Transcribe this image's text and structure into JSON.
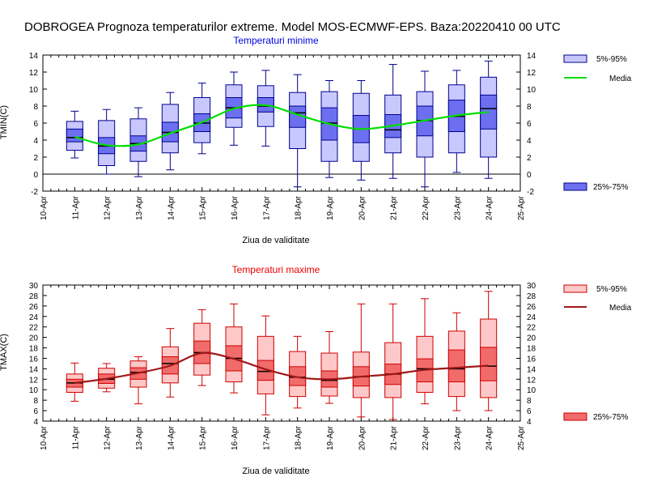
{
  "title": "DOBROGEA  Prognoza temperaturilor extreme.  Model MOS-ECMWF-EPS. Baza:20220410 00 UTC",
  "colors": {
    "min_box": "#6c70f0",
    "min_whisker": "#c8c8ff",
    "min_edge": "#00008b",
    "min_mean": "#00dd00",
    "max_box": "#f26b6b",
    "max_whisker": "#ffc8c8",
    "max_edge": "#cc0000",
    "max_mean": "#a01818"
  },
  "chart_data": [
    {
      "type": "boxplot",
      "title": "Temperaturi minime",
      "xlabel": "Ziua de validitate",
      "ylabel": "TMIN(C)",
      "ylim": [
        -2,
        14
      ],
      "yticks": [
        -2,
        0,
        2,
        4,
        6,
        8,
        10,
        12,
        14
      ],
      "x_ticks": [
        "10-Apr",
        "11-Apr",
        "12-Apr",
        "13-Apr",
        "14-Apr",
        "15-Apr",
        "16-Apr",
        "17-Apr",
        "18-Apr",
        "19-Apr",
        "20-Apr",
        "21-Apr",
        "22-Apr",
        "23-Apr",
        "24-Apr",
        "25-Apr"
      ],
      "categories": [
        "11-Apr",
        "12-Apr",
        "13-Apr",
        "14-Apr",
        "15-Apr",
        "16-Apr",
        "17-Apr",
        "18-Apr",
        "19-Apr",
        "20-Apr",
        "21-Apr",
        "22-Apr",
        "23-Apr",
        "24-Apr"
      ],
      "p5": [
        2.8,
        1.0,
        1.5,
        2.5,
        3.7,
        5.5,
        5.6,
        3.0,
        1.5,
        1.5,
        2.5,
        2.0,
        2.5,
        2.0
      ],
      "p25": [
        3.8,
        2.4,
        2.7,
        3.8,
        5.0,
        6.6,
        7.3,
        5.5,
        4.0,
        3.7,
        4.3,
        4.5,
        5.0,
        5.3
      ],
      "median": [
        4.3,
        3.3,
        3.6,
        4.9,
        6.0,
        7.8,
        8.0,
        7.2,
        6.0,
        5.3,
        5.2,
        6.3,
        6.8,
        7.7
      ],
      "p75": [
        5.3,
        4.3,
        4.5,
        6.1,
        7.1,
        9.0,
        9.0,
        8.0,
        7.8,
        6.9,
        7.0,
        8.0,
        8.7,
        9.3
      ],
      "p95": [
        6.2,
        6.3,
        6.5,
        8.2,
        9.0,
        10.5,
        10.4,
        9.6,
        9.7,
        9.5,
        9.3,
        9.7,
        10.5,
        11.4
      ],
      "min": [
        1.9,
        0.0,
        -0.3,
        0.5,
        2.4,
        3.4,
        3.3,
        -1.5,
        -0.4,
        -0.7,
        -0.5,
        -1.5,
        0.2,
        -0.5
      ],
      "max": [
        7.4,
        7.6,
        7.8,
        9.6,
        10.7,
        12.0,
        12.2,
        11.7,
        11.0,
        11.0,
        12.9,
        12.1,
        12.2,
        13.3
      ],
      "mean": [
        4.4,
        3.4,
        3.5,
        4.8,
        6.1,
        7.7,
        8.1,
        7.0,
        5.9,
        5.3,
        5.7,
        6.3,
        6.9,
        7.3
      ],
      "legend": {
        "whisker": "5%-95%",
        "mean": "Media",
        "box": "25%-75%"
      },
      "colors": {
        "box": "#6c70f0",
        "whisker": "#c8c8ff",
        "edge": "#00008b",
        "mean": "#00dd00",
        "title": "#0000dd"
      }
    },
    {
      "type": "boxplot",
      "title": "Temperaturi maxime",
      "xlabel": "Ziua de validitate",
      "ylabel": "TMAX(C)",
      "ylim": [
        4,
        30
      ],
      "yticks": [
        4,
        6,
        8,
        10,
        12,
        14,
        16,
        18,
        20,
        22,
        24,
        26,
        28,
        30
      ],
      "x_ticks": [
        "10-Apr",
        "11-Apr",
        "12-Apr",
        "13-Apr",
        "14-Apr",
        "15-Apr",
        "16-Apr",
        "17-Apr",
        "18-Apr",
        "19-Apr",
        "20-Apr",
        "21-Apr",
        "22-Apr",
        "23-Apr",
        "24-Apr",
        "25-Apr"
      ],
      "categories": [
        "11-Apr",
        "12-Apr",
        "13-Apr",
        "14-Apr",
        "15-Apr",
        "16-Apr",
        "17-Apr",
        "18-Apr",
        "19-Apr",
        "20-Apr",
        "21-Apr",
        "22-Apr",
        "23-Apr",
        "24-Apr"
      ],
      "p5": [
        9.5,
        10.3,
        10.5,
        11.3,
        12.8,
        11.5,
        9.2,
        8.7,
        8.8,
        8.5,
        8.5,
        9.5,
        8.7,
        8.5
      ],
      "p25": [
        10.5,
        11.2,
        12.0,
        13.0,
        15.0,
        13.6,
        11.8,
        10.8,
        10.5,
        10.7,
        11.0,
        11.5,
        11.5,
        11.7
      ],
      "median": [
        11.3,
        12.0,
        13.3,
        15.0,
        17.1,
        16.0,
        13.5,
        12.4,
        11.8,
        12.5,
        13.0,
        14.0,
        14.0,
        14.5
      ],
      "p75": [
        12.0,
        13.0,
        14.2,
        16.3,
        19.3,
        18.4,
        15.6,
        14.4,
        13.6,
        14.4,
        14.9,
        15.9,
        17.6,
        18.1
      ],
      "p95": [
        13.0,
        14.1,
        15.5,
        18.2,
        22.7,
        22.0,
        20.2,
        17.3,
        17.0,
        17.2,
        19.0,
        20.2,
        21.2,
        23.5
      ],
      "min": [
        7.8,
        9.6,
        7.3,
        8.6,
        10.8,
        9.4,
        5.2,
        6.5,
        7.4,
        4.8,
        4.3,
        7.3,
        6.0,
        6.0
      ],
      "max": [
        15.1,
        15.0,
        16.3,
        21.7,
        25.3,
        26.4,
        24.1,
        20.2,
        21.1,
        26.4,
        26.4,
        27.4,
        24.7,
        28.8
      ],
      "mean": [
        11.3,
        12.1,
        13.2,
        14.6,
        17.0,
        15.9,
        13.9,
        12.4,
        12.0,
        12.5,
        13.0,
        13.8,
        14.2,
        14.6
      ],
      "legend": {
        "whisker": "5%-95%",
        "mean": "Media",
        "box": "25%-75%"
      },
      "colors": {
        "box": "#f26b6b",
        "whisker": "#ffc8c8",
        "edge": "#cc0000",
        "mean": "#a01818",
        "title": "#ee0000"
      }
    }
  ]
}
